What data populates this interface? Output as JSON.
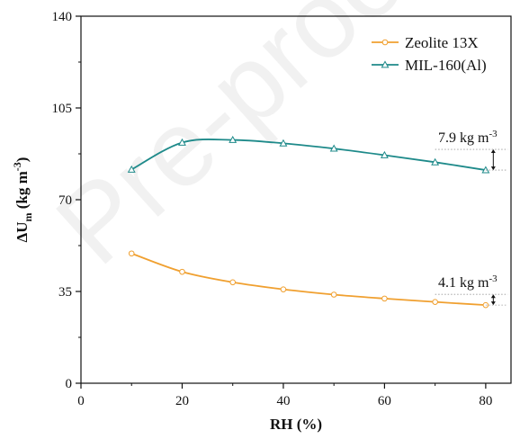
{
  "chart_data": {
    "type": "line",
    "xlabel": "RH (%)",
    "ylabel": {
      "prefix": "ΔU",
      "subscript": "m",
      "unit": " (kg m",
      "unit_sup": "-3",
      "unit_close": ")"
    },
    "xlim": [
      0,
      85
    ],
    "ylim": [
      0,
      140
    ],
    "x_ticks": [
      0,
      20,
      40,
      60,
      80
    ],
    "y_ticks": [
      0,
      35,
      70,
      105,
      140
    ],
    "grid": false,
    "legend_position": "top-right",
    "series": [
      {
        "name": "Zeolite 13X",
        "color": "#f0a030",
        "marker": "circle",
        "x": [
          10,
          20,
          30,
          40,
          50,
          60,
          70,
          80
        ],
        "y": [
          49.5,
          42.5,
          38.5,
          35.8,
          33.8,
          32.3,
          31.0,
          29.8
        ]
      },
      {
        "name": "MIL-160(Al)",
        "color": "#1e8a8a",
        "marker": "triangle",
        "x": [
          10,
          20,
          30,
          40,
          50,
          60,
          70,
          80
        ],
        "y": [
          81.5,
          91.8,
          92.8,
          91.5,
          89.5,
          87.0,
          84.3,
          81.3
        ]
      }
    ],
    "annotations": [
      {
        "text": "7.9 kg m",
        "sup": "-3",
        "series": "MIL-160(Al)",
        "from": 89.2,
        "to": 81.3
      },
      {
        "text": "4.1 kg m",
        "sup": "-3",
        "series": "Zeolite 13X",
        "from": 33.9,
        "to": 29.8
      }
    ],
    "watermark": "Pre-proof"
  }
}
